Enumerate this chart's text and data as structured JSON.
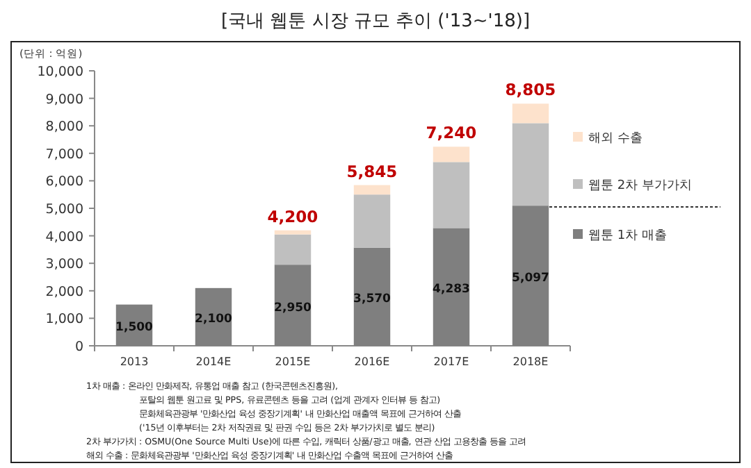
{
  "chart_data": {
    "type": "bar",
    "stacked": true,
    "title": "[국내 웹툰 시장 규모 추이 ('13~'18)]",
    "ylabel": "(단위 : 억원)",
    "categories": [
      "2013",
      "2014E",
      "2015E",
      "2016E",
      "2017E",
      "2018E"
    ],
    "series": [
      {
        "name": "웹툰 1차 매출",
        "color": "#7f7f7f",
        "values": [
          1500,
          2100,
          2950,
          3570,
          4283,
          5097
        ],
        "value_labels": [
          "1,500",
          "2,100",
          "2,950",
          "3,570",
          "4,283",
          "5,097"
        ]
      },
      {
        "name": "웹툰 2차 부가가치",
        "color": "#bfbfbf",
        "values": [
          null,
          null,
          1100,
          1930,
          2400,
          3000
        ]
      },
      {
        "name": "해외 수출",
        "color": "#fde2cc",
        "values": [
          null,
          null,
          150,
          345,
          557,
          708
        ]
      }
    ],
    "totals": [
      null,
      null,
      "4,200",
      "5,845",
      "7,240",
      "8,805"
    ],
    "ylim": [
      0,
      10000
    ],
    "yticks": [
      {
        "value": 0,
        "label": "0"
      },
      {
        "value": 1000,
        "label": "1,000"
      },
      {
        "value": 2000,
        "label": "2,000"
      },
      {
        "value": 3000,
        "label": "3,000"
      },
      {
        "value": 4000,
        "label": "4,000"
      },
      {
        "value": 5000,
        "label": "5,000"
      },
      {
        "value": 6000,
        "label": "6,000"
      },
      {
        "value": 7000,
        "label": "7,000"
      },
      {
        "value": 8000,
        "label": "8,000"
      },
      {
        "value": 9000,
        "label": "9,000"
      },
      {
        "value": 10000,
        "label": "10,000"
      }
    ],
    "grid": false,
    "legend": "right",
    "annotations": [
      "1차 매출 : 온라인 만화제작, 유통업 매출 참고 (한국콘텐츠진흥원),",
      "포탈의 웹툰 원고료 및 PPS, 유료콘텐츠 등을 고려 (업계 관계자 인터뷰 등 참고)",
      "문화체육관광부 '만화산업 육성 중장기계획' 내 만화산업 매출액 목표에 근거하여 산출",
      "('15년 이후부터는 2차 저작권료 및 판권 수입 등은 2차 부가가치로 별도 분리)",
      "2차 부가가치 : OSMU(One Source Multi Use)에 따른 수입, 캐릭터 상품/광고 매출, 연관 산업 고용창출 등을 고려",
      "해외 수출 : 문화체육관광부 '만화산업 육성 중장기계획' 내 만화산업 수출액 목표에 근거하여 산출"
    ]
  }
}
